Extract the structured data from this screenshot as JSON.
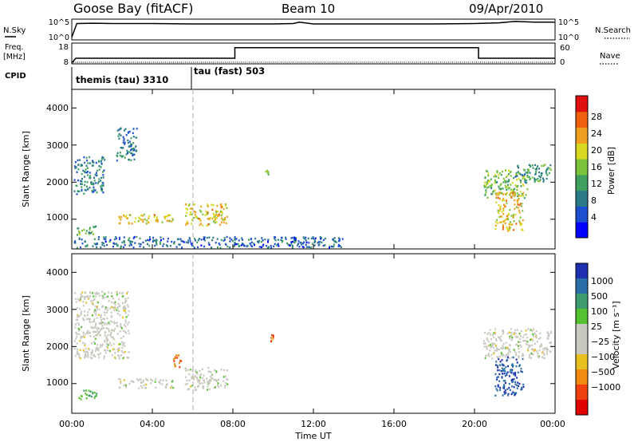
{
  "header": {
    "station": "Goose Bay (fitACF)",
    "beam": "Beam 10",
    "date": "09/Apr/2010"
  },
  "nsky_panel": {
    "left_label": "N.Sky",
    "left_ticks": [
      "10^5",
      "10^0"
    ],
    "right_label": "N.Search",
    "right_ticks": [
      "10^5",
      "10^0"
    ]
  },
  "freq_panel": {
    "left_label_1": "Freq.",
    "left_label_2": "[MHz]",
    "left_ticks": [
      "18",
      "8"
    ],
    "right_label": "Nave",
    "right_ticks": [
      "60",
      "0"
    ]
  },
  "cpid": {
    "label": "CPID",
    "modes": [
      "themis (tau) 3310",
      "tau (fast) 503"
    ]
  },
  "power_panel": {
    "ylabel": "Slant Range [km]",
    "yticks": [
      "4000",
      "3000",
      "2000",
      "1000"
    ],
    "colorbar_label": "Power [dB]",
    "colorbar_ticks": [
      "28",
      "24",
      "20",
      "16",
      "12",
      "8",
      "4"
    ],
    "colors": [
      "#0000ff",
      "#1e4fd0",
      "#2b7a8a",
      "#3fa060",
      "#7cc23a",
      "#d8d820",
      "#f0a020",
      "#f06010",
      "#e01010"
    ]
  },
  "velocity_panel": {
    "ylabel": "Slant Range [km]",
    "yticks": [
      "4000",
      "3000",
      "2000",
      "1000"
    ],
    "colorbar_label": "Velocity [m s⁻¹]",
    "colorbar_ticks": [
      "1000",
      "500",
      "100",
      "25",
      "−25",
      "−100",
      "−500",
      "−1000"
    ],
    "colors": [
      "#1e2fb0",
      "#2b6fa8",
      "#3f9a70",
      "#55c030",
      "#c8c8c0",
      "#c8c8c0",
      "#e8c020",
      "#f08a10",
      "#f04010",
      "#e00000"
    ]
  },
  "x_axis": {
    "ticks": [
      "00:00",
      "04:00",
      "08:00",
      "12:00",
      "16:00",
      "20:00",
      "00:00"
    ],
    "label": "Time UT"
  },
  "chart_data": [
    {
      "type": "line",
      "title": "N.Sky",
      "x": [
        0,
        0.25,
        1,
        2,
        4,
        6,
        8,
        10,
        11,
        11.3,
        12,
        14,
        16,
        18,
        20,
        21.2,
        22,
        23,
        24
      ],
      "y": [
        0.3,
        4.2,
        4.3,
        4.2,
        4.2,
        4.1,
        4.1,
        4.1,
        4.2,
        4.6,
        4.1,
        4.1,
        4.1,
        4.1,
        4.2,
        4.4,
        4.8,
        4.6,
        4.6
      ],
      "ylim": [
        0,
        5
      ]
    },
    {
      "type": "line",
      "title": "Freq.",
      "x": [
        0,
        0.2,
        8.1,
        8.1,
        20.2,
        20.2,
        24
      ],
      "y": [
        8,
        10.5,
        10.5,
        16,
        16,
        10.5,
        10.5
      ],
      "ylim": [
        8,
        18
      ]
    },
    {
      "type": "heatmap",
      "title": "Power",
      "x_range": [
        0,
        24
      ],
      "y_range": [
        200,
        4500
      ],
      "colorbar_range": [
        0,
        30
      ],
      "regions": [
        {
          "t": [
            0.1,
            1.6
          ],
          "r": [
            1700,
            2700
          ],
          "power": 8
        },
        {
          "t": [
            2.2,
            3.2
          ],
          "r": [
            2600,
            3500
          ],
          "power": 8
        },
        {
          "t": [
            0.2,
            1.2
          ],
          "r": [
            600,
            850
          ],
          "power": 12
        },
        {
          "t": [
            2.3,
            5.0
          ],
          "r": [
            900,
            1150
          ],
          "power": 20
        },
        {
          "t": [
            5.6,
            7.7
          ],
          "r": [
            850,
            1450
          ],
          "power": 20
        },
        {
          "t": [
            0.1,
            13.5
          ],
          "r": [
            250,
            550
          ],
          "power": 6
        },
        {
          "t": [
            9.6,
            9.8
          ],
          "r": [
            2200,
            2350
          ],
          "power": 14
        },
        {
          "t": [
            20.4,
            22.6
          ],
          "r": [
            1600,
            2350
          ],
          "power": 14
        },
        {
          "t": [
            21.0,
            22.4
          ],
          "r": [
            700,
            1750
          ],
          "power": 20
        },
        {
          "t": [
            22.0,
            23.8
          ],
          "r": [
            2000,
            2500
          ],
          "power": 10
        }
      ]
    },
    {
      "type": "heatmap",
      "title": "Velocity",
      "x_range": [
        0,
        24
      ],
      "y_range": [
        200,
        4500
      ],
      "colorbar_range": [
        -1000,
        1000
      ],
      "regions": [
        {
          "t": [
            0.1,
            2.8
          ],
          "r": [
            1700,
            3500
          ],
          "velocity": 0
        },
        {
          "t": [
            0.2,
            1.2
          ],
          "r": [
            600,
            850
          ],
          "velocity": 100
        },
        {
          "t": [
            2.3,
            5.0
          ],
          "r": [
            900,
            1150
          ],
          "velocity": 0
        },
        {
          "t": [
            5.6,
            7.7
          ],
          "r": [
            850,
            1450
          ],
          "velocity": 0
        },
        {
          "t": [
            5.0,
            5.5
          ],
          "r": [
            1450,
            1800
          ],
          "velocity": -500
        },
        {
          "t": [
            9.8,
            10.0
          ],
          "r": [
            2150,
            2350
          ],
          "velocity": -500
        },
        {
          "t": [
            20.4,
            23.8
          ],
          "r": [
            1700,
            2500
          ],
          "velocity": 0
        },
        {
          "t": [
            21.0,
            22.4
          ],
          "r": [
            700,
            1750
          ],
          "velocity": 500
        }
      ]
    }
  ]
}
